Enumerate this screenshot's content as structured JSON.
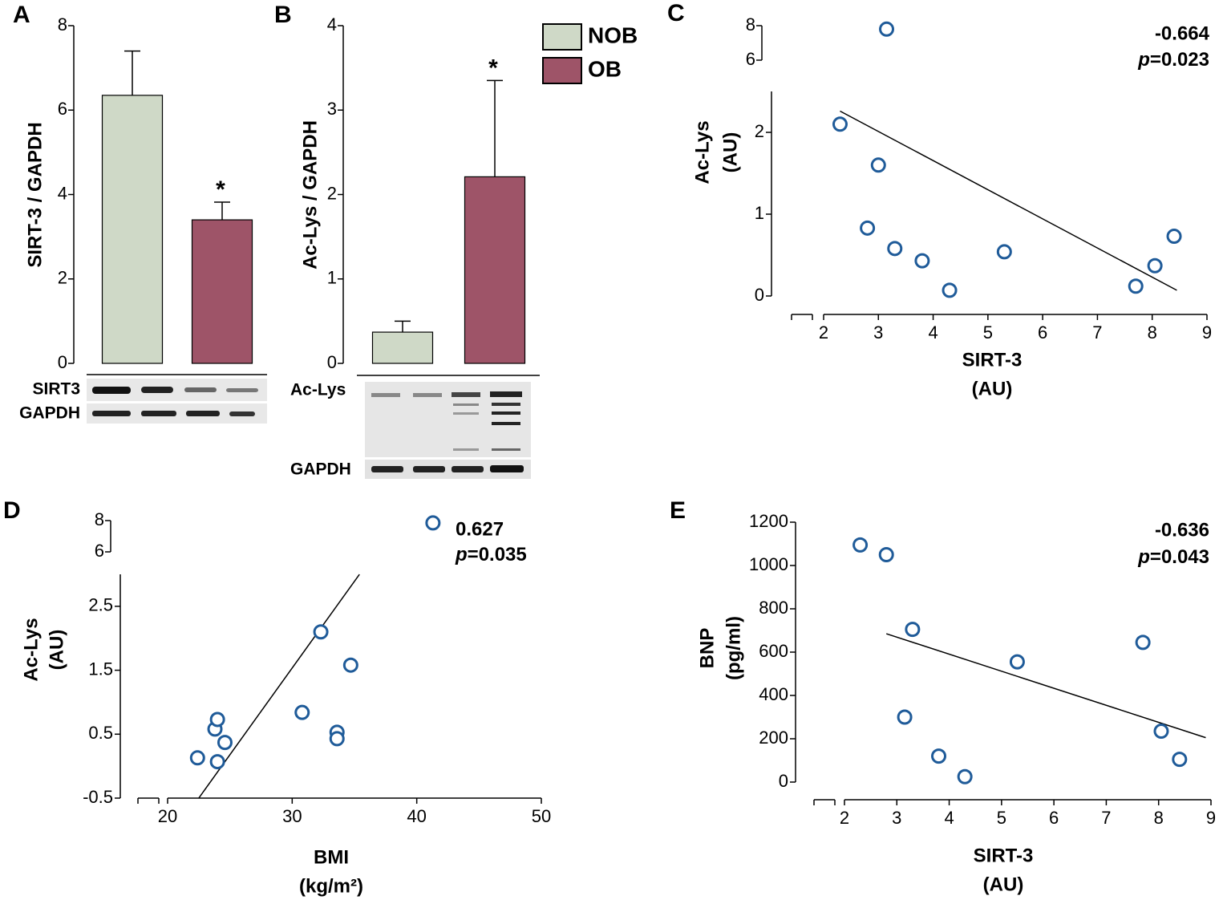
{
  "chart_data": [
    {
      "type": "bar",
      "panel": "A",
      "y_label": "SIRT-3  / GAPDH",
      "values": [
        6.35,
        3.4
      ],
      "errors": [
        1.05,
        0.42
      ],
      "colors": [
        "#cfd9c7",
        "#9e5468"
      ],
      "significance": [
        null,
        "*"
      ],
      "ylim": [
        0,
        8
      ],
      "yticks": [
        0,
        2,
        4,
        6,
        8
      ],
      "blot_labels": [
        "SIRT3",
        "GAPDH"
      ]
    },
    {
      "type": "bar",
      "panel": "B",
      "y_label": "Ac-Lys / GAPDH",
      "categories": [
        "NOB",
        "OB"
      ],
      "values": [
        0.37,
        2.21
      ],
      "errors": [
        0.13,
        1.14
      ],
      "colors": [
        "#cfd9c7",
        "#9e5468"
      ],
      "significance": [
        null,
        "*"
      ],
      "legend": "upper right",
      "ylim": [
        0,
        4
      ],
      "yticks": [
        0,
        1,
        2,
        3,
        4
      ],
      "blot_labels": [
        "Ac-Lys",
        "GAPDH"
      ]
    },
    {
      "type": "scatter",
      "panel": "C",
      "x_label": [
        "SIRT-3",
        "(AU)"
      ],
      "y_label": [
        "Ac-Lys",
        "(AU)"
      ],
      "color": "#1f5b99",
      "x": [
        2.3,
        3.15,
        3.0,
        2.8,
        3.3,
        3.8,
        4.3,
        5.3,
        7.7,
        8.05,
        8.4
      ],
      "y": [
        2.1,
        7.8,
        1.6,
        0.83,
        0.58,
        0.43,
        0.07,
        0.54,
        0.12,
        0.37,
        0.73
      ],
      "xlim": [
        2,
        9
      ],
      "xticks": [
        2,
        3,
        4,
        5,
        6,
        7,
        8,
        9
      ],
      "ylim": [
        0,
        2.5
      ],
      "yticks": [
        0,
        1,
        2
      ],
      "y_break": {
        "ylim": [
          6,
          8
        ],
        "yticks": [
          6,
          8
        ]
      },
      "trendline": {
        "x": [
          2.3,
          8.45
        ],
        "y": [
          2.26,
          0.07
        ]
      },
      "annotation": {
        "r": "-0.664",
        "p": [
          "p",
          "=0.023"
        ],
        "align": "right"
      }
    },
    {
      "type": "scatter",
      "panel": "D",
      "x_label": [
        "BMI",
        "(kg/m²)"
      ],
      "y_label": [
        "Ac-Lys",
        "(AU)"
      ],
      "color": "#1f5b99",
      "x": [
        41.3,
        22.4,
        24,
        23.8,
        24,
        24.6,
        30.8,
        32.3,
        34.7,
        33.6,
        33.6
      ],
      "y": [
        7.85,
        0.13,
        0.07,
        0.58,
        0.73,
        0.37,
        0.84,
        2.1,
        1.58,
        0.53,
        0.43
      ],
      "xlim": [
        20,
        50
      ],
      "xticks": [
        20,
        30,
        40,
        50
      ],
      "ylim": [
        -0.5,
        3
      ],
      "yticks": [
        -0.5,
        0.5,
        1.5,
        2.5
      ],
      "y_break": {
        "ylim": [
          6,
          8
        ],
        "yticks": [
          6,
          8
        ]
      },
      "trendline": {
        "x": [
          22.5,
          35.4
        ],
        "y": [
          -0.5,
          3
        ]
      },
      "annotation": {
        "r": "0.627",
        "p": [
          "p",
          "=0.035"
        ],
        "align": "left"
      }
    },
    {
      "type": "scatter",
      "panel": "E",
      "x_label": [
        "SIRT-3",
        "(AU)"
      ],
      "y_label": [
        "BNP",
        "(pg/ml)"
      ],
      "color": "#1f5b99",
      "x": [
        2.3,
        2.8,
        3.3,
        3.15,
        3.8,
        4.3,
        5.3,
        7.7,
        8.05,
        8.4
      ],
      "y": [
        1095,
        1050,
        705,
        300,
        120,
        25,
        555,
        645,
        235,
        105
      ],
      "xlim": [
        2,
        9
      ],
      "xticks": [
        2,
        3,
        4,
        5,
        6,
        7,
        8,
        9
      ],
      "ylim": [
        0,
        1200
      ],
      "yticks": [
        0,
        200,
        400,
        600,
        800,
        1000,
        1200
      ],
      "trendline": {
        "x": [
          2.8,
          8.9
        ],
        "y": [
          685,
          205
        ]
      },
      "annotation": {
        "r": "-0.636",
        "p": [
          "p",
          "=0.043"
        ],
        "align": "right"
      }
    }
  ]
}
